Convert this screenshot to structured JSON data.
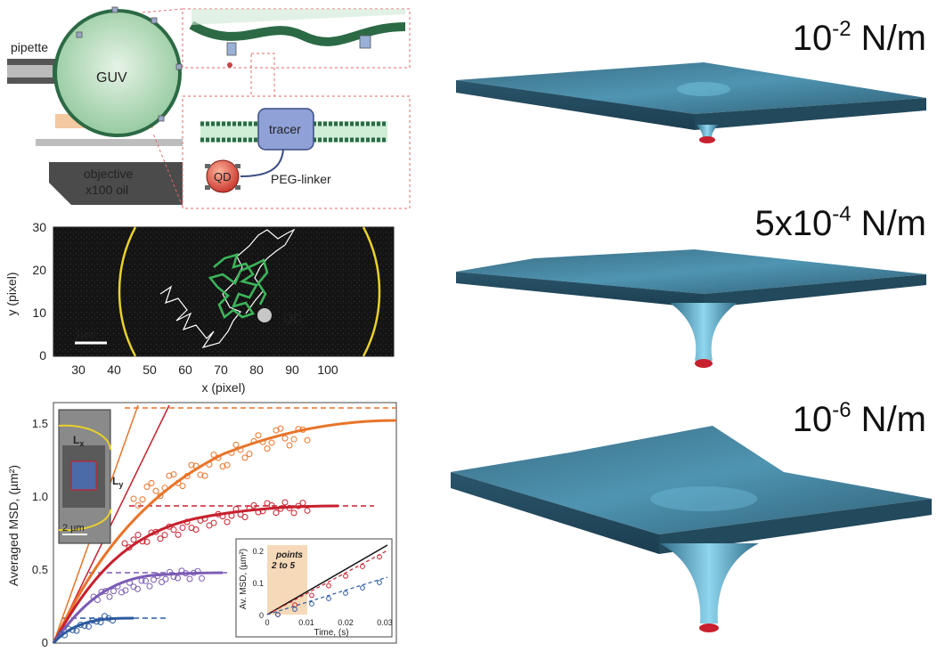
{
  "schematic": {
    "pipette": "pipette",
    "guv": "GUV",
    "objective_line1": "objective",
    "objective_line2": "x100 oil",
    "tracer": "tracer",
    "qd": "QD",
    "peg_linker": "PEG-linker"
  },
  "trajectory": {
    "ylabel": "y (pixel)",
    "xlabel": "x (pixel)",
    "scalebar": "1µm",
    "qd_label": "QD",
    "xticks": [
      "30",
      "40",
      "50",
      "60",
      "70",
      "80",
      "90",
      "100"
    ],
    "yticks": [
      "0",
      "10",
      "20",
      "30"
    ]
  },
  "msd": {
    "ylabel": "Averaged MSD, (µm²)",
    "yticks": [
      "0",
      "0.5",
      "1.0",
      "1.5"
    ],
    "inset_scale": "2 µm",
    "lx": "L",
    "lx_sub": "x",
    "ly": "L",
    "ly_sub": "y",
    "inset2_ylabel": "Av. MSD, (µm²)",
    "inset2_xlabel": "Time, (s)",
    "inset2_yticks": [
      "0",
      "0.1",
      "0.2"
    ],
    "inset2_xticks": [
      "0",
      "0.01",
      "0.02",
      "0.03"
    ],
    "inset2_note_1": "points",
    "inset2_note_2": "2 to 5"
  },
  "tension": {
    "t1_base": "10",
    "t1_exp": "-2",
    "t1_unit": " N/m",
    "t2_base": "5x10",
    "t2_exp": "-4",
    "t2_unit": " N/m",
    "t3_base": "10",
    "t3_exp": "-6",
    "t3_unit": " N/m"
  },
  "colors": {
    "orange": "#e8742a",
    "red": "#c8202e",
    "purple": "#7b5cb5",
    "blue": "#2c5aa0",
    "membrane": "#3f7d99",
    "membrane_light": "#62b3cf"
  }
}
